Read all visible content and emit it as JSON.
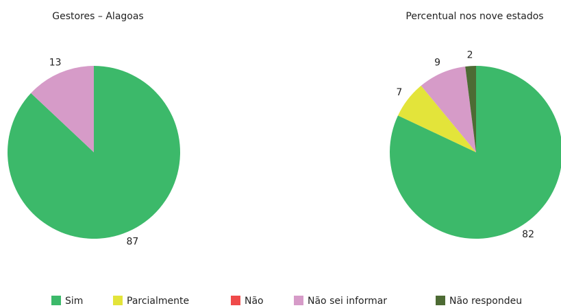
{
  "chart_data": [
    {
      "type": "pie",
      "title": "Gestores – Alagoas",
      "categories": [
        "Sim",
        "Parcialmente",
        "Não",
        "Não sei informar",
        "Não respondeu"
      ],
      "values": [
        87,
        null,
        null,
        13,
        null
      ],
      "colors": [
        "#3cb96a",
        "#e3e43a",
        "#ef4a4a",
        "#d69bc8",
        "#4d6b34"
      ]
    },
    {
      "type": "pie",
      "title": "Percentual nos nove estados",
      "categories": [
        "Sim",
        "Parcialmente",
        "Não",
        "Não sei informar",
        "Não respondeu"
      ],
      "values": [
        82,
        7,
        null,
        9,
        2
      ],
      "colors": [
        "#3cb96a",
        "#e3e43a",
        "#ef4a4a",
        "#d69bc8",
        "#4d6b34"
      ]
    }
  ]
}
